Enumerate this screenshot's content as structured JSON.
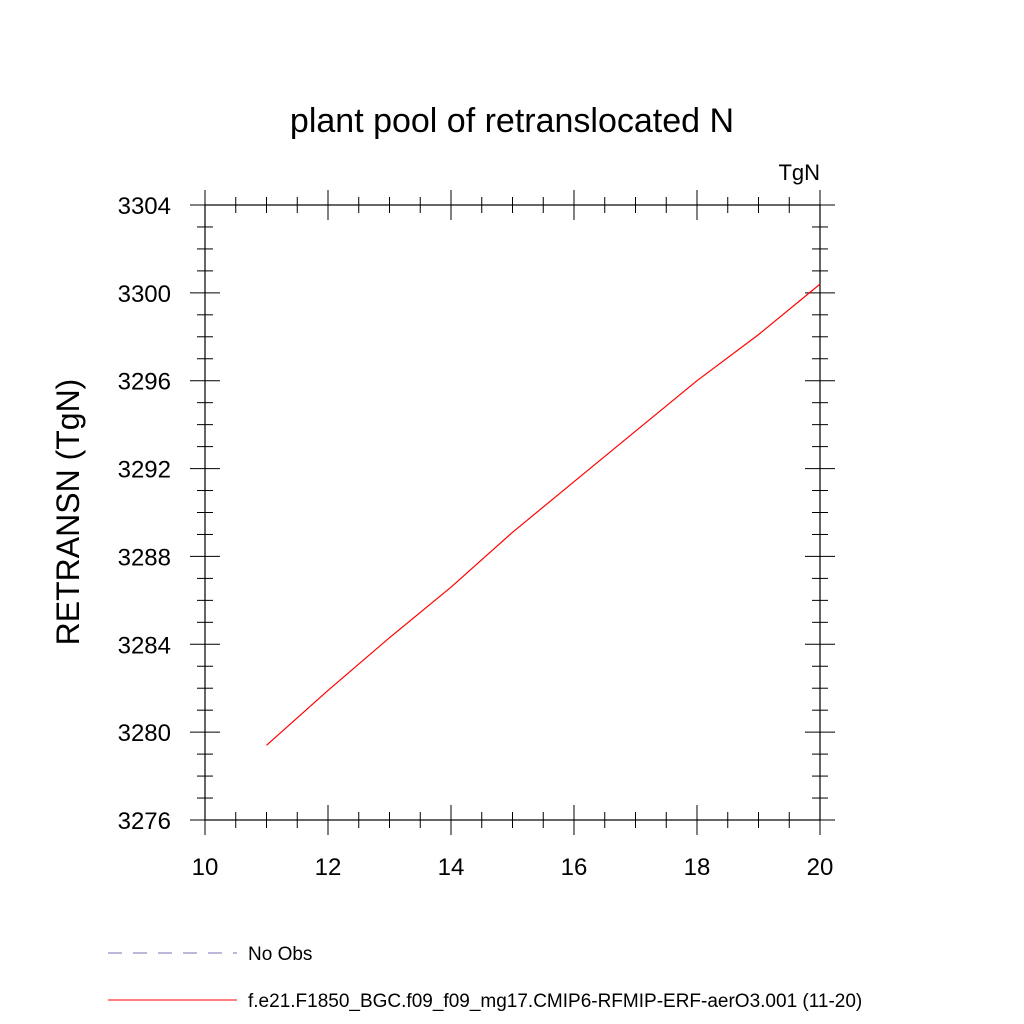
{
  "chart_data": {
    "type": "line",
    "title": "plant pool of retranslocated N",
    "units_label": "TgN",
    "ylabel": "RETRANSN  (TgN)",
    "xlabel": "",
    "xlim": [
      10,
      20
    ],
    "ylim": [
      3276,
      3304
    ],
    "x_ticks": [
      10,
      12,
      14,
      16,
      18,
      20
    ],
    "y_ticks": [
      3276,
      3280,
      3284,
      3288,
      3292,
      3296,
      3300,
      3304
    ],
    "grid": false,
    "legend_position": "bottom-left",
    "series": [
      {
        "name": "No Obs",
        "color": "#7b6fb3",
        "style": "dashed",
        "x": [],
        "y": []
      },
      {
        "name": "f.e21.F1850_BGC.f09_f09_mg17.CMIP6-RFMIP-ERF-aerO3.001 (11-20)",
        "color": "#ff0000",
        "style": "solid",
        "x": [
          11,
          12,
          13,
          14,
          15,
          16,
          17,
          18,
          19,
          20
        ],
        "y": [
          3279.4,
          3281.9,
          3284.3,
          3286.6,
          3289.1,
          3291.4,
          3293.7,
          3296.0,
          3298.1,
          3300.4
        ]
      }
    ]
  }
}
